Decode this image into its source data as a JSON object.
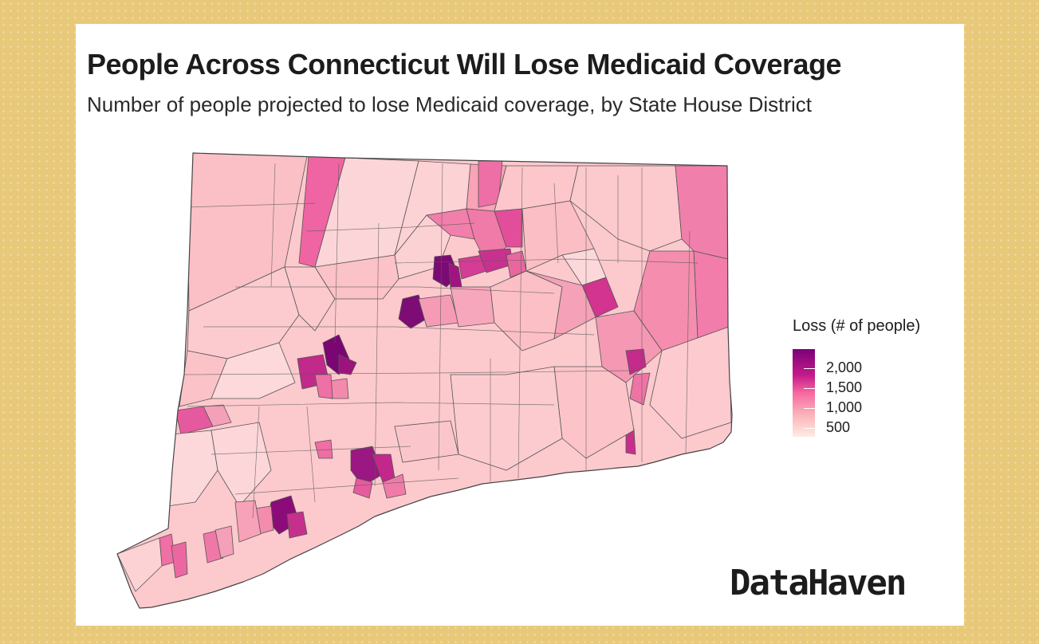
{
  "title": "People Across Connecticut Will Lose Medicaid Coverage",
  "subtitle": "Number of people projected to lose Medicaid coverage, by State House District",
  "legend": {
    "title": "Loss (# of people)",
    "labels": [
      "2,000",
      "1,500",
      "1,000",
      "500"
    ]
  },
  "brand": "DataHaven",
  "colors": {
    "background": "#e8c97a",
    "card": "#ffffff",
    "scale": [
      "#feebe2",
      "#fbb4b9",
      "#f768a1",
      "#c51b8a",
      "#7a0177"
    ],
    "border": "#555555"
  }
}
